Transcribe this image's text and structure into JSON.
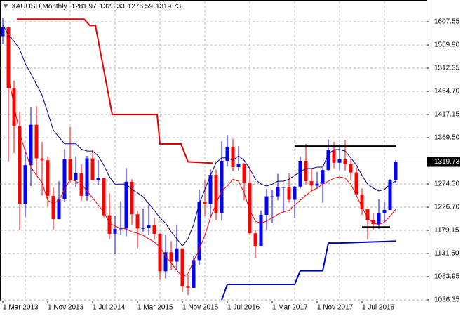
{
  "chart_data": {
    "type": "candlestick",
    "title": "XAUUSD,Monthly",
    "categories": [
      "1 Mar 2013",
      null,
      null,
      null,
      null,
      null,
      null,
      null,
      "1 Nov 2013",
      null,
      null,
      null,
      null,
      null,
      null,
      null,
      "1 Jul 2014",
      null,
      null,
      null,
      null,
      null,
      null,
      null,
      "1 Mar 2015",
      null,
      null,
      null,
      null,
      null,
      null,
      null,
      "1 Nov 2015",
      null,
      null,
      null,
      null,
      null,
      null,
      null,
      "1 Jul 2016",
      null,
      null,
      null,
      null,
      null,
      null,
      null,
      "1 Mar 2017",
      null,
      null,
      null,
      null,
      null,
      null,
      null,
      "1 Nov 2017",
      null,
      null,
      null,
      null,
      null,
      null,
      null,
      "1 Jul 2018",
      null,
      null,
      null,
      null,
      null,
      null
    ],
    "open": [
      1578,
      1596,
      1472,
      1393,
      1234,
      1313,
      1396,
      1327,
      1323,
      1250,
      1202,
      1244,
      1326,
      1283,
      1296,
      1250,
      1327,
      1282,
      1287,
      1210,
      1172,
      1182,
      1183,
      1279,
      1212,
      1183,
      1184,
      1190,
      1172,
      1095,
      1134,
      1115,
      1142,
      1065,
      1061,
      1118,
      1238,
      1233,
      1293,
      1215,
      1322,
      1351,
      1309,
      1316,
      1277,
      1173,
      1146,
      1211,
      1249,
      1249,
      1268,
      1268,
      1242,
      1269,
      1322,
      1280,
      1271,
      1275,
      1303,
      1345,
      1318,
      1325,
      1315,
      1298,
      1253,
      1223,
      1200,
      1192,
      1214,
      1221,
      1281.97
    ],
    "high": [
      1616,
      1598,
      1487,
      1423,
      1347,
      1433,
      1434,
      1361,
      1331,
      1267,
      1280,
      1346,
      1392,
      1331,
      1315,
      1332,
      1345,
      1323,
      1287,
      1255,
      1209,
      1239,
      1307,
      1284,
      1219,
      1224,
      1232,
      1205,
      1174,
      1170,
      1157,
      1191,
      1142,
      1088,
      1127,
      1263,
      1283,
      1304,
      1304,
      1362,
      1375,
      1367,
      1352,
      1317,
      1305,
      1180,
      1220,
      1264,
      1262,
      1295,
      1269,
      1296,
      1270,
      1331,
      1357,
      1306,
      1299,
      1307,
      1366,
      1361,
      1356,
      1365,
      1326,
      1309,
      1265,
      1223,
      1214,
      1243,
      1237,
      1284,
      1323.33
    ],
    "low": [
      1562,
      1321,
      1338,
      1180,
      1207,
      1270,
      1292,
      1251,
      1228,
      1181,
      1202,
      1238,
      1277,
      1268,
      1240,
      1240,
      1281,
      1273,
      1206,
      1161,
      1131,
      1170,
      1167,
      1191,
      1142,
      1175,
      1169,
      1162,
      1077,
      1080,
      1098,
      1098,
      1052,
      1046,
      1061,
      1108,
      1208,
      1207,
      1200,
      1199,
      1310,
      1301,
      1302,
      1241,
      1171,
      1123,
      1146,
      1180,
      1194,
      1241,
      1214,
      1236,
      1204,
      1265,
      1272,
      1260,
      1264,
      1236,
      1302,
      1307,
      1303,
      1302,
      1282,
      1250,
      1211,
      1160,
      1180,
      1182,
      1196,
      1221,
      1276.59
    ],
    "close": [
      1596,
      1472,
      1393,
      1234,
      1313,
      1396,
      1327,
      1323,
      1250,
      1202,
      1244,
      1326,
      1283,
      1296,
      1250,
      1327,
      1282,
      1287,
      1210,
      1172,
      1182,
      1183,
      1279,
      1212,
      1183,
      1184,
      1190,
      1172,
      1095,
      1134,
      1115,
      1142,
      1065,
      1061,
      1118,
      1238,
      1233,
      1293,
      1215,
      1322,
      1351,
      1309,
      1316,
      1277,
      1173,
      1146,
      1211,
      1249,
      1249,
      1268,
      1268,
      1242,
      1269,
      1322,
      1280,
      1271,
      1275,
      1303,
      1345,
      1318,
      1325,
      1315,
      1298,
      1253,
      1223,
      1200,
      1192,
      1214,
      1221,
      1282,
      1319.73
    ],
    "up_color": "#0000ff",
    "down_color": "#ff0000",
    "series": [
      {
        "color": "#000080",
        "values": [
          1602,
          1580,
          1568,
          1551,
          1522,
          1501,
          1479,
          1457,
          1421,
          1385,
          1371,
          1357,
          1357,
          1357,
          1346,
          1342,
          1342,
          1332,
          1313,
          1289,
          1274,
          1274,
          1274,
          1263,
          1256,
          1248,
          1234,
          1220,
          1205,
          1194,
          1176,
          1162,
          1147,
          1162,
          1191,
          1234,
          1263,
          1292,
          1318,
          1328,
          1328,
          1323,
          1332,
          1323,
          1306,
          1284,
          1274,
          1270,
          1274,
          1280,
          1280,
          1284,
          1292,
          1299,
          1306,
          1306,
          1309,
          1309,
          1335,
          1345,
          1345,
          1342,
          1328,
          1313,
          1292,
          1274,
          1266,
          1260,
          1263,
          1274,
          1280
        ]
      },
      {
        "color": "#ff0000",
        "values": [
          null,
          1494,
          1436,
          1378,
          1342,
          1309,
          1292,
          1277,
          1241,
          1234,
          1241,
          1263,
          1284,
          1280,
          1274,
          1260,
          1246,
          1231,
          1217,
          1194,
          1188,
          1183,
          1182,
          1176,
          1173,
          1169,
          1162,
          1155,
          1145,
          1126,
          1112,
          1097,
          1083,
          1090,
          1116,
          1140,
          1169,
          1205,
          1234,
          1260,
          1270,
          1284,
          1280,
          1256,
          1220,
          1198,
          1194,
          1198,
          1205,
          1212,
          1217,
          1220,
          1231,
          1241,
          1251,
          1260,
          1266,
          1274,
          1280,
          1286,
          1289,
          1286,
          1274,
          1251,
          1227,
          1205,
          1194,
          1191,
          1196,
          1208,
          1222
        ]
      }
    ],
    "levels": [
      {
        "color": "#e00000",
        "x": [
          2.5,
          14.5,
          15.5,
          16.5,
          19.5,
          27.5,
          28,
          31.75,
          33,
          37.5
        ],
        "values": [
          1613,
          1613,
          1600,
          1600,
          1417,
          1417,
          1356.5,
          1356.5,
          1320,
          1317
        ]
      },
      {
        "color": "#0000cc",
        "x": [
          39,
          40,
          52,
          53,
          57,
          58,
          60,
          70
        ],
        "values": [
          1036,
          1068,
          1068,
          1096,
          1096,
          1153,
          1153,
          1157
        ]
      },
      {
        "color": "#000000",
        "x": [
          52,
          70
        ],
        "values": [
          1352,
          1352
        ]
      },
      {
        "color": "#000000",
        "x": [
          64,
          69
        ],
        "values": [
          1186,
          1186
        ]
      }
    ],
    "xlim": [
      -0.5,
      75.5
    ],
    "ylim": [
      1034.9,
      1649.4
    ],
    "yticks": [
      1607.55,
      {
        "value": 1559.9,
        "label": "1559.90"
      },
      1512.35,
      {
        "value": 1464.7,
        "label": "1464.70"
      },
      1417.15,
      {
        "value": 1369.5,
        "label": "1369.50"
      },
      {
        "value": 1274.3,
        "label": "1274.30"
      },
      {
        "value": 1226.7,
        "label": "1226.70"
      },
      1179.15,
      {
        "value": 1131.5,
        "label": "1131.50"
      },
      1083.95,
      1036.35
    ],
    "grid": true
  }
}
